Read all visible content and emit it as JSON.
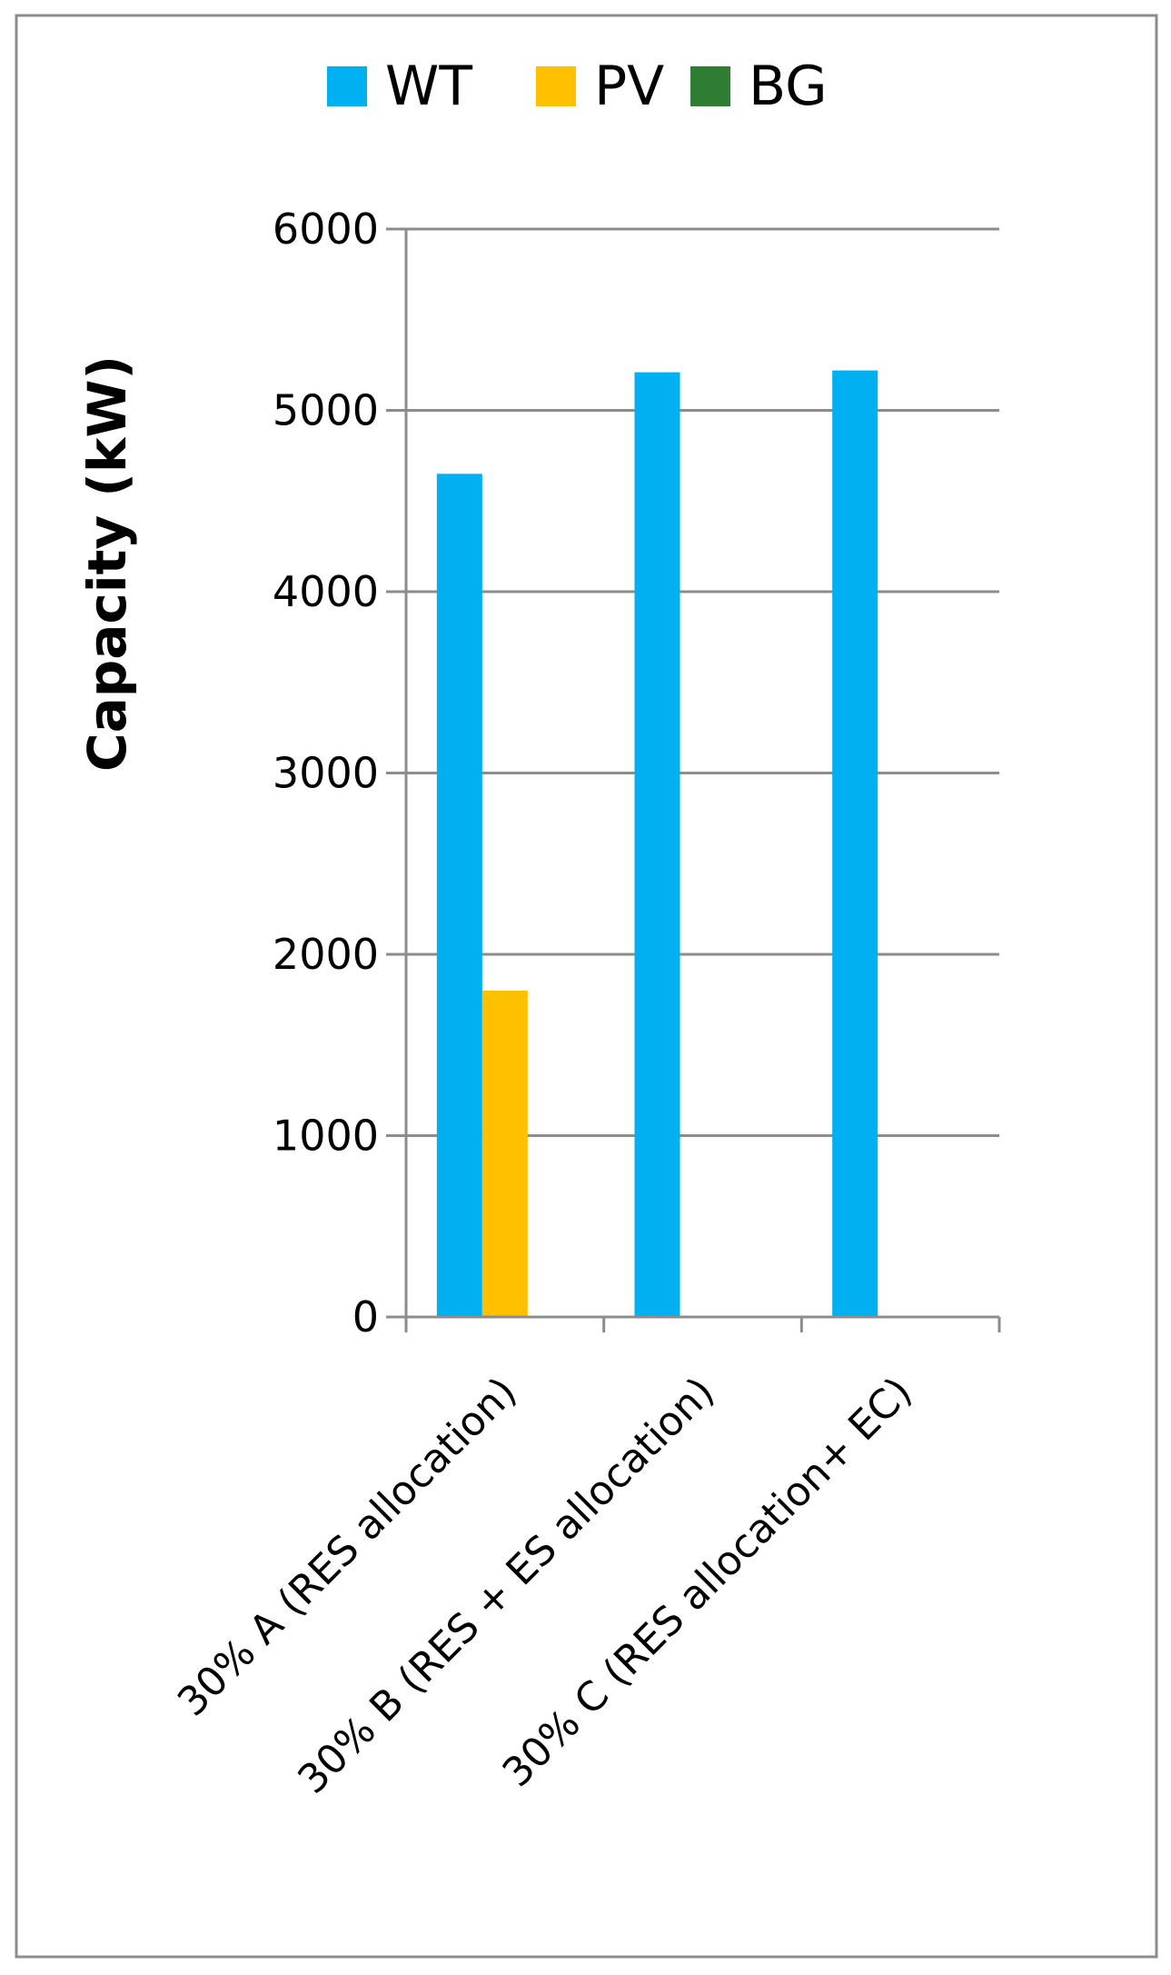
{
  "chart_data": {
    "type": "bar",
    "title": "",
    "xlabel": "",
    "ylabel": "Capacity (kW)",
    "ylim": [
      0,
      6000
    ],
    "yticks": [
      0,
      1000,
      2000,
      3000,
      4000,
      5000,
      6000
    ],
    "grid": true,
    "legend_position": "top",
    "categories": [
      "30% A (RES allocation)",
      "30% B (RES + ES allocation)",
      "30% C (RES allocation+ EC)"
    ],
    "series": [
      {
        "name": "WT",
        "color": "#00B0F0",
        "values": [
          4650,
          5210,
          5220
        ]
      },
      {
        "name": "PV",
        "color": "#FFC000",
        "values": [
          1800,
          0,
          0
        ]
      },
      {
        "name": "BG",
        "color": "#2E7D32",
        "values": [
          0,
          0,
          0
        ]
      }
    ]
  }
}
